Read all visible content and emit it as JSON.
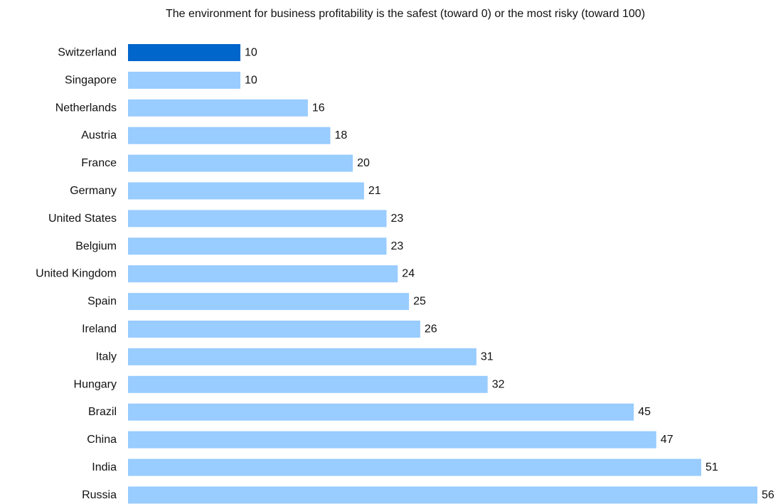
{
  "chart_data": {
    "type": "bar",
    "orientation": "horizontal",
    "title": "The environment for business profitability is the safest (toward 0) or the most risky (toward 100)",
    "xlabel": "",
    "ylabel": "",
    "categories": [
      "Switzerland",
      "Singapore",
      "Netherlands",
      "Austria",
      "France",
      "Germany",
      "United States",
      "Belgium",
      "United Kingdom",
      "Spain",
      "Ireland",
      "Italy",
      "Hungary",
      "Brazil",
      "China",
      "India",
      "Russia"
    ],
    "values": [
      10,
      10,
      16,
      18,
      20,
      21,
      23,
      23,
      24,
      25,
      26,
      31,
      32,
      45,
      47,
      51,
      56
    ],
    "xlim": [
      0,
      56
    ],
    "highlight_index": 0,
    "grid": false,
    "legend": "none",
    "colors": {
      "bar": "#99CCFF",
      "highlight": "#0066CC",
      "text": "#111111"
    }
  }
}
